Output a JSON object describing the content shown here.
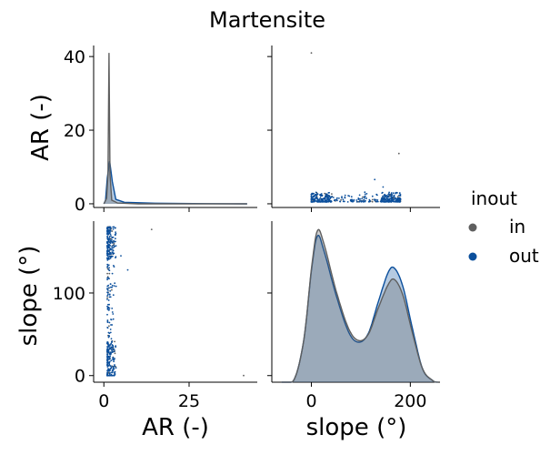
{
  "chart_data": {
    "type": "scatter",
    "title": "Martensite",
    "variables": [
      "AR (-)",
      "slope (°)"
    ],
    "legend": {
      "title": "inout",
      "placement": "right",
      "entries": [
        {
          "label": "in",
          "color": "#5f5f5f"
        },
        {
          "label": "out",
          "color": "#0b4f9c"
        }
      ]
    },
    "axes": {
      "ar": {
        "range": [
          -3,
          45
        ],
        "ticks": [
          0,
          25
        ],
        "density_range": [
          -1,
          43
        ],
        "density_ticks": [
          0,
          20,
          40
        ]
      },
      "slope": {
        "range": [
          -8,
          187
        ],
        "ticks": [
          0,
          100
        ],
        "density_range": [
          -80,
          260
        ],
        "density_ticks": [
          0,
          200
        ]
      }
    },
    "grid": false,
    "series": [
      {
        "name": "in",
        "color": "#5f5f5f",
        "ar_kde": [
          [
            0,
            0.0
          ],
          [
            0.8,
            1.5
          ],
          [
            1.2,
            8
          ],
          [
            1.5,
            41.0
          ],
          [
            1.8,
            8
          ],
          [
            2.3,
            1.0
          ],
          [
            4,
            0.2
          ],
          [
            10,
            0.0
          ],
          [
            42,
            0.0
          ]
        ],
        "slope_kde": [
          [
            -60,
            0
          ],
          [
            -35,
            3
          ],
          [
            -15,
            50
          ],
          [
            0,
            130
          ],
          [
            12,
            174
          ],
          [
            25,
            160
          ],
          [
            50,
            105
          ],
          [
            75,
            62
          ],
          [
            95,
            48
          ],
          [
            115,
            55
          ],
          [
            135,
            85
          ],
          [
            155,
            112
          ],
          [
            168,
            118
          ],
          [
            185,
            100
          ],
          [
            205,
            55
          ],
          [
            225,
            15
          ],
          [
            245,
            2
          ],
          [
            255,
            0
          ]
        ],
        "outliers": [
          {
            "ar": 41.0,
            "slope": 0
          },
          {
            "ar": 14.0,
            "slope": 177
          }
        ]
      },
      {
        "name": "out",
        "color": "#0b4f9c",
        "ar_kde": [
          [
            0,
            0.0
          ],
          [
            0.5,
            1.0
          ],
          [
            1.0,
            7
          ],
          [
            1.7,
            11.6
          ],
          [
            2.5,
            6
          ],
          [
            3.5,
            1.2
          ],
          [
            6,
            0.4
          ],
          [
            15,
            0.15
          ],
          [
            30,
            0.05
          ],
          [
            42,
            0.0
          ]
        ],
        "slope_kde": [
          [
            -60,
            0
          ],
          [
            -35,
            3
          ],
          [
            -15,
            50
          ],
          [
            0,
            128
          ],
          [
            12,
            168
          ],
          [
            25,
            152
          ],
          [
            50,
            100
          ],
          [
            75,
            58
          ],
          [
            95,
            46
          ],
          [
            115,
            56
          ],
          [
            135,
            92
          ],
          [
            155,
            126
          ],
          [
            168,
            131
          ],
          [
            185,
            110
          ],
          [
            205,
            60
          ],
          [
            225,
            15
          ],
          [
            245,
            2
          ],
          [
            255,
            0
          ]
        ],
        "outliers": [
          {
            "ar": 2.5,
            "slope": 6
          },
          {
            "ar": 3.0,
            "slope": 8
          },
          {
            "ar": 7.0,
            "slope": 128
          },
          {
            "ar": 5.0,
            "slope": 145
          }
        ]
      }
    ]
  }
}
